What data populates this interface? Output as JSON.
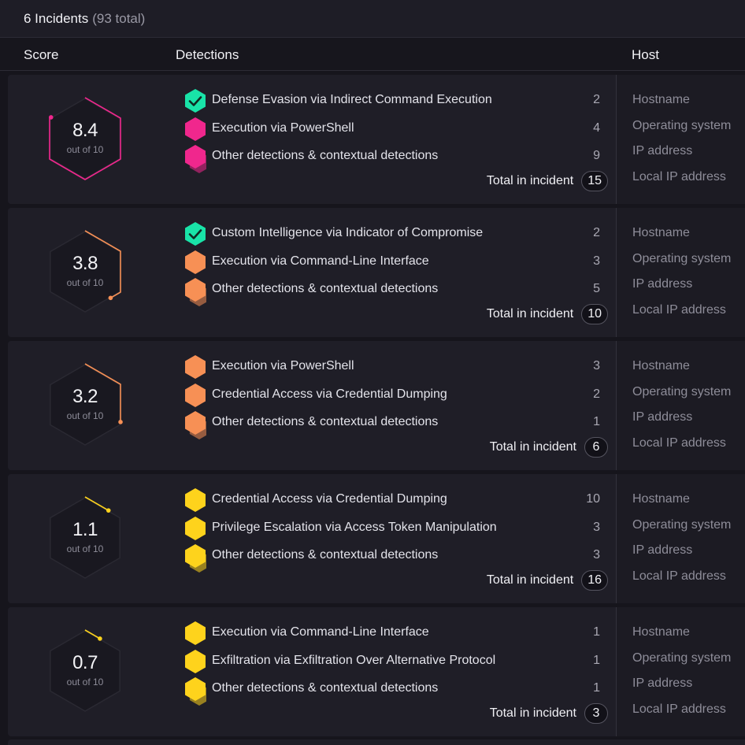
{
  "header": {
    "count_label": "6 Incidents",
    "total_label": "(93 total)"
  },
  "columns": {
    "score": "Score",
    "detections": "Detections",
    "host": "Host"
  },
  "host_fields": [
    "Hostname",
    "Operating system",
    "IP address",
    "Local IP address"
  ],
  "colors": {
    "check": "#19e3a8",
    "pink": "#f0278d",
    "orange": "#f79055",
    "yellow": "#fed31c"
  },
  "incidents": [
    {
      "score": "8.4",
      "score_fraction": 0.84,
      "score_sub": "out of 10",
      "color": "#f0278d",
      "detections": [
        {
          "icon": "check-hexagon-icon",
          "label": "Defense Evasion via Indirect Command Execution",
          "count": "2"
        },
        {
          "icon": "hexagon-icon",
          "label": "Execution via PowerShell",
          "count": "4"
        },
        {
          "icon": "stacked-hexagon-icon",
          "label": "Other detections & contextual detections",
          "count": "9"
        }
      ],
      "total_label": "Total in incident",
      "total": "15"
    },
    {
      "score": "3.8",
      "score_fraction": 0.38,
      "score_sub": "out of 10",
      "color": "#f79055",
      "detections": [
        {
          "icon": "check-hexagon-icon",
          "label": "Custom Intelligence via Indicator of Compromise",
          "count": "2"
        },
        {
          "icon": "hexagon-icon",
          "label": "Execution via Command-Line Interface",
          "count": "3"
        },
        {
          "icon": "stacked-hexagon-icon",
          "label": "Other detections & contextual detections",
          "count": "5"
        }
      ],
      "total_label": "Total in incident",
      "total": "10"
    },
    {
      "score": "3.2",
      "score_fraction": 0.32,
      "score_sub": "out of 10",
      "color": "#f79055",
      "detections": [
        {
          "icon": "hexagon-icon",
          "label": "Execution via PowerShell",
          "count": "3"
        },
        {
          "icon": "hexagon-icon",
          "label": "Credential Access via Credential Dumping",
          "count": "2"
        },
        {
          "icon": "stacked-hexagon-icon",
          "label": "Other detections & contextual detections",
          "count": "1"
        }
      ],
      "total_label": "Total in incident",
      "total": "6"
    },
    {
      "score": "1.1",
      "score_fraction": 0.11,
      "score_sub": "out of 10",
      "color": "#fed31c",
      "detections": [
        {
          "icon": "hexagon-icon",
          "label": "Credential Access via Credential Dumping",
          "count": "10"
        },
        {
          "icon": "hexagon-icon",
          "label": "Privilege Escalation via Access Token Manipulation",
          "count": "3"
        },
        {
          "icon": "stacked-hexagon-icon",
          "label": "Other detections & contextual detections",
          "count": "3"
        }
      ],
      "total_label": "Total in incident",
      "total": "16"
    },
    {
      "score": "0.7",
      "score_fraction": 0.07,
      "score_sub": "out of 10",
      "color": "#fed31c",
      "detections": [
        {
          "icon": "hexagon-icon",
          "label": "Execution via Command-Line Interface",
          "count": "1"
        },
        {
          "icon": "hexagon-icon",
          "label": "Exfiltration via Exfiltration Over Alternative Protocol",
          "count": "1"
        },
        {
          "icon": "stacked-hexagon-icon",
          "label": "Other detections & contextual detections",
          "count": "1"
        }
      ],
      "total_label": "Total in incident",
      "total": "3"
    }
  ]
}
